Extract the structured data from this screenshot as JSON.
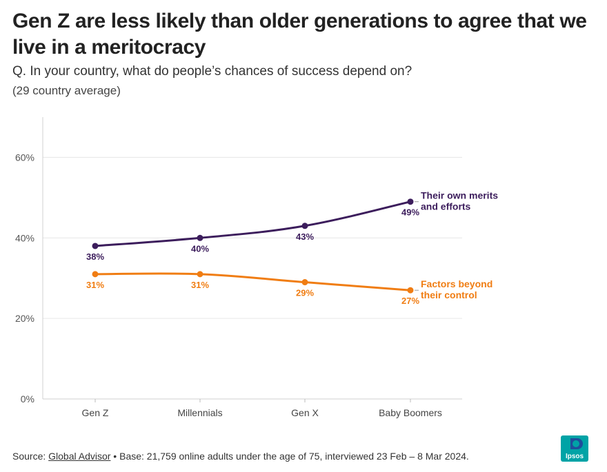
{
  "header": {
    "title": "Gen Z are less likely than older generations to agree that we live in a meritocracy",
    "question": "Q. In your country, what do people’s chances of success depend on?",
    "note": "(29 country average)"
  },
  "footer": {
    "source_label": "Source: ",
    "source_link": "Global Advisor",
    "rest": " • Base: 21,759 online adults under the age of 75, interviewed 23 Feb – 8 Mar 2024."
  },
  "logo": {
    "text": "Ipsos",
    "color": "#00a3a6",
    "accent": "#1f4e9c"
  },
  "chart_data": {
    "type": "line",
    "title": "Gen Z are less likely than older generations to agree that we live in a meritocracy",
    "categories": [
      "Gen Z",
      "Millennials",
      "Gen X",
      "Baby Boomers"
    ],
    "ylim": [
      0,
      70
    ],
    "yticks": [
      0,
      20,
      40,
      60
    ],
    "ytick_labels": [
      "0%",
      "20%",
      "40%",
      "60%"
    ],
    "grid": true,
    "series": [
      {
        "name": "Their own merits and efforts",
        "label_lines": [
          "Their own merits",
          "and efforts"
        ],
        "values": [
          38,
          40,
          43,
          49
        ],
        "labels": [
          "38%",
          "40%",
          "43%",
          "49%"
        ],
        "color": "#3c1d5c"
      },
      {
        "name": "Factors beyond their control",
        "label_lines": [
          "Factors beyond",
          "their control"
        ],
        "values": [
          31,
          31,
          29,
          27
        ],
        "labels": [
          "31%",
          "31%",
          "29%",
          "27%"
        ],
        "color": "#f07d13"
      }
    ]
  }
}
